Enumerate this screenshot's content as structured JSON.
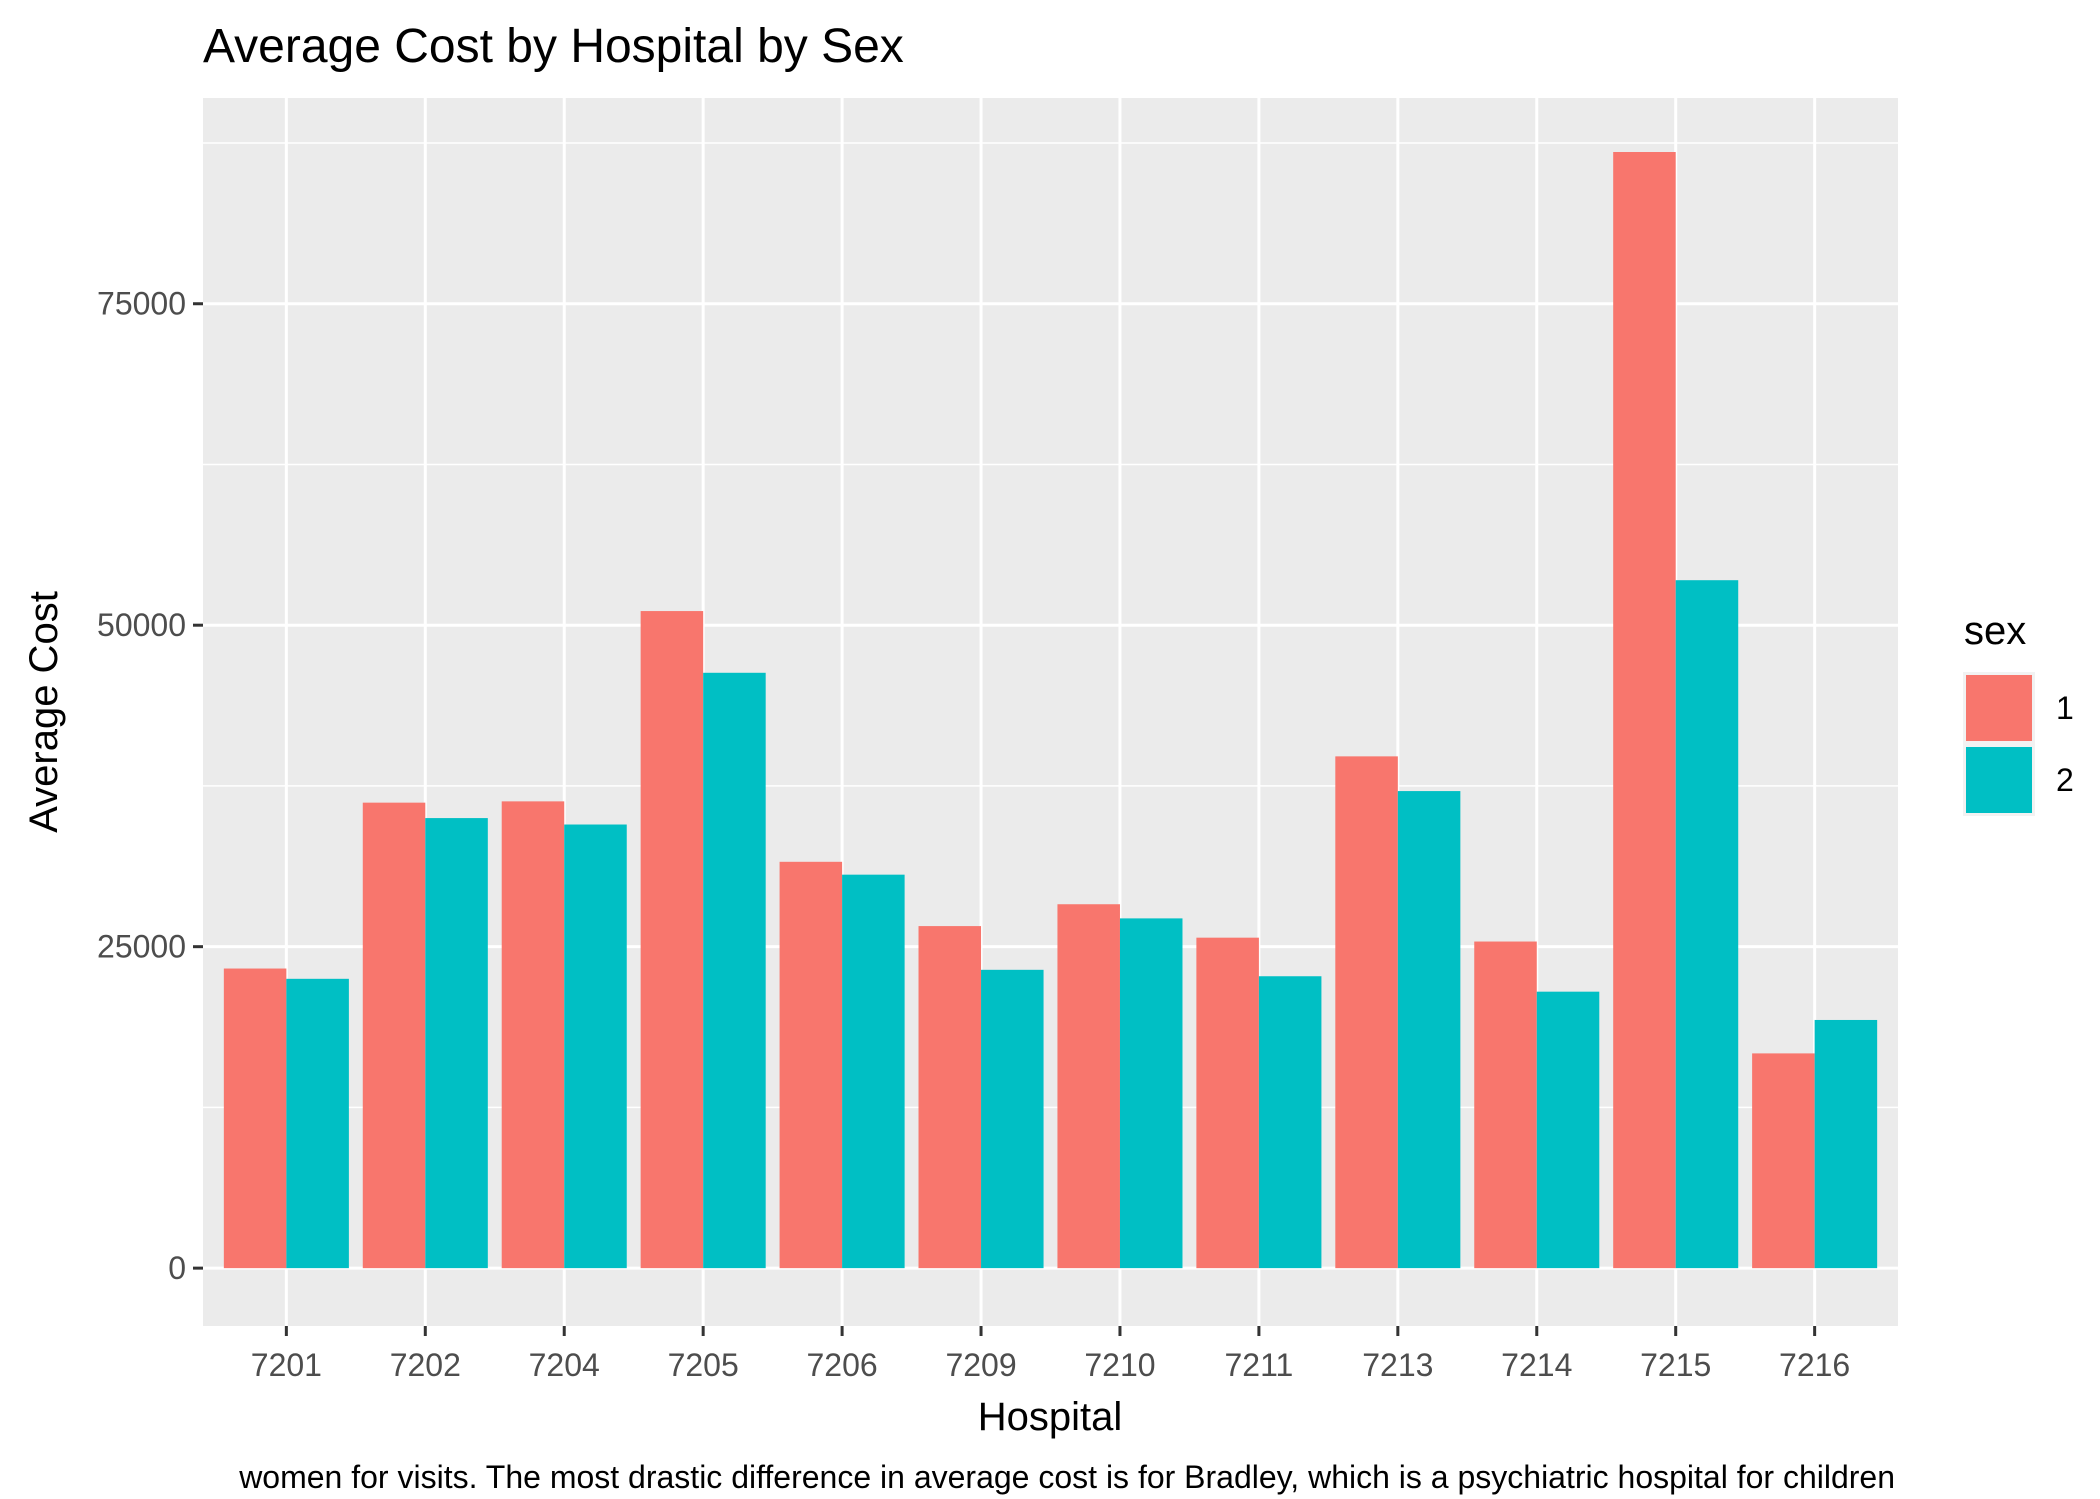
{
  "chart_data": {
    "type": "bar",
    "title": "Average Cost by Hospital by Sex",
    "xlabel": "Hospital",
    "ylabel": "Average Cost",
    "caption": "women for visits. The most drastic difference in average cost is for Bradley, which is a psychiatric hospital for children",
    "categories": [
      "7201",
      "7202",
      "7204",
      "7205",
      "7206",
      "7209",
      "7210",
      "7211",
      "7213",
      "7214",
      "7215",
      "7216"
    ],
    "series": [
      {
        "name": "1",
        "color": "#F8766D",
        "values": [
          23300,
          36200,
          36300,
          51100,
          31600,
          26600,
          28300,
          25700,
          39800,
          25400,
          86800,
          16700
        ]
      },
      {
        "name": "2",
        "color": "#00BFC4",
        "values": [
          22500,
          35000,
          34500,
          46300,
          30600,
          23200,
          27200,
          22700,
          37100,
          21500,
          53500,
          19300
        ]
      }
    ],
    "ylim": [
      -4500,
      91000
    ],
    "yticks": [
      0,
      25000,
      50000,
      75000
    ],
    "ytick_labels": [
      "0",
      "25000",
      "50000",
      "75000"
    ],
    "legend": {
      "title": "sex",
      "position": "right"
    },
    "grid": true,
    "panel_color": "#EBEBEB"
  }
}
